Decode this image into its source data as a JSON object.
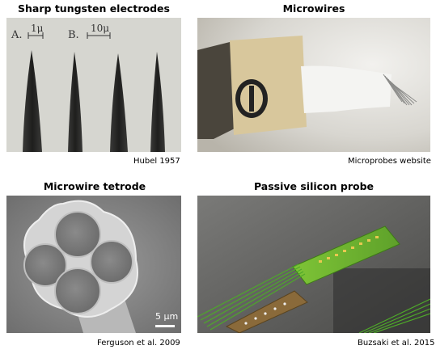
{
  "panels": [
    {
      "title": "Sharp tungsten electrodes",
      "caption": "Hubel 1957",
      "photo_labels": {
        "label_a": "A.",
        "scale_a": "1μ",
        "label_b": "B.",
        "scale_b": "10μ"
      }
    },
    {
      "title": "Microwires",
      "caption": "Microprobes website"
    },
    {
      "title": "Microwire tetrode",
      "caption": "Ferguson et al. 2009",
      "photo_labels": {
        "scale": "5 μm"
      }
    },
    {
      "title": "Passive silicon probe",
      "caption": "Buzsaki et al. 2015"
    }
  ]
}
